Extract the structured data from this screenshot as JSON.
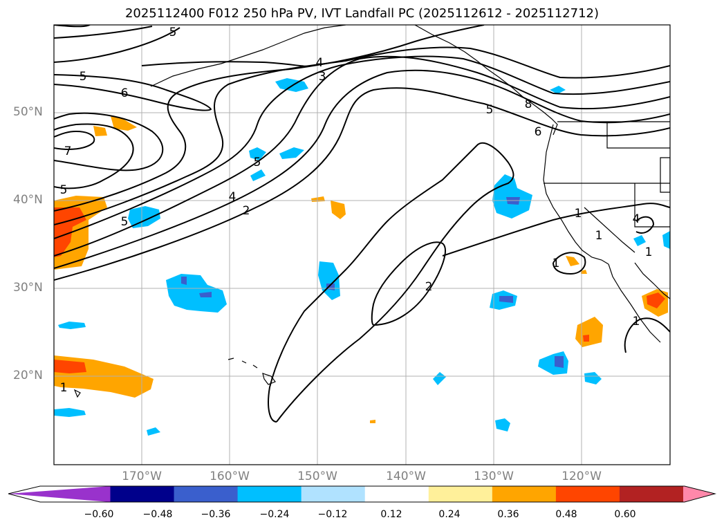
{
  "title": "2025112400 F012 250 hPa PV, IVT Landfall PC (2025112612 - 2025112712)",
  "lat_labels": [
    "50°N",
    "40°N",
    "30°N",
    "20°N"
  ],
  "lon_labels": [
    "170°W",
    "160°W",
    "150°W",
    "140°W",
    "130°W",
    "120°W"
  ],
  "contour_labels": [
    "5",
    "5",
    "4",
    "3",
    "5",
    "6",
    "7",
    "5",
    "4",
    "2",
    "5",
    "8",
    "6",
    "5",
    "1",
    "1",
    "1",
    "1",
    "2",
    "1",
    "1",
    "4"
  ],
  "colorbar": {
    "ticks": [
      "−0.60",
      "−0.48",
      "−0.36",
      "−0.24",
      "−0.12",
      "0.12",
      "0.24",
      "0.36",
      "0.48",
      "0.60"
    ],
    "colors": [
      "#9932cc",
      "#00008b",
      "#3a5fcd",
      "#00bfff",
      "#b0e2ff",
      "#ffffff",
      "#fff09a",
      "#ffa500",
      "#ff4500",
      "#b22222",
      "#ff88aa"
    ]
  },
  "colors": {
    "neg_strong": "#3a5fcd",
    "neg_mid": "#00bfff",
    "neg_weak": "#b0e2ff",
    "pos_weak": "#fff09a",
    "pos_mid": "#ffa500",
    "pos_strong": "#ff4500",
    "pos_vstrong": "#b22222",
    "gridline": "#b0b0b0"
  }
}
